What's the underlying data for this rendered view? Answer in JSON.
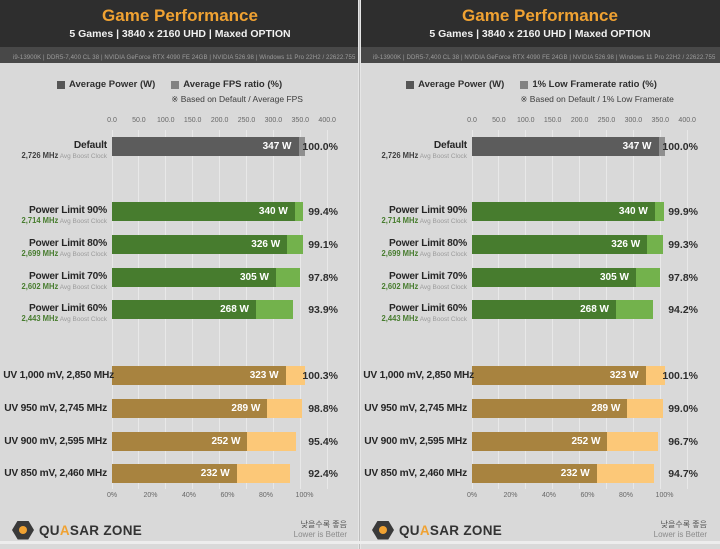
{
  "colors": {
    "header_bg": "#2e2e2e",
    "title_orange": "#f0a232",
    "subtitle": "#f2f2f2",
    "spec_bg": "#484848",
    "spec_text": "#9d9d9d",
    "chart_bg": "#d9d9d9",
    "gridline": "#e8e8e8",
    "legend_power_swatch": "#565656",
    "legend_ratio_swatch": "#828282",
    "groups": {
      "default": {
        "dark": "#5c5c5c",
        "light": "#8f8f8f",
        "clock": "#3f3f3f"
      },
      "pl": {
        "dark": "#477c2e",
        "light": "#73b24c",
        "clock": "#477c2e"
      },
      "uv": {
        "dark": "#a8833f",
        "light": "#fcc878",
        "clock": "#a8833f"
      }
    }
  },
  "panels": [
    {
      "header": {
        "title": "Game Performance",
        "subtitle": "5 Games  |  3840 x 2160 UHD  |  Maxed OPTION",
        "specs": "i9-13900K  |  DDR5-7,400 CL 38  |  NVIDIA GeForce RTX 4090 FE 24GB  |  NVIDIA 526.98  |  Windows 11 Pro 22H2 / 22622.755"
      },
      "legend": {
        "power_label": "Average Power (W)",
        "ratio_label": "Average FPS ratio (%)",
        "note": "※ Based on Default / Average FPS"
      },
      "chart_data": {
        "type": "bar",
        "orientation": "horizontal",
        "title": "Game Performance — Average Power (W) vs Average FPS ratio (%)",
        "top_axis": {
          "label": "Average Power (W)",
          "ticks": [
            "0.0",
            "50.0",
            "100.0",
            "150.0",
            "200.0",
            "250.0",
            "300.0",
            "350.0",
            "400.0"
          ],
          "min": 0,
          "max": 400
        },
        "bottom_axis": {
          "label": "Ratio (%)",
          "labels": [
            "0%",
            "20%",
            "40%",
            "60%",
            "80%",
            "100%"
          ],
          "values": [
            0,
            20,
            40,
            60,
            80,
            100
          ],
          "min": 0,
          "max": 100
        },
        "rows": [
          {
            "label": "Default",
            "clock": "2,726 MHz",
            "clock_note": "Avg Boost Clock",
            "watts": 347,
            "watts_label": "347 W",
            "ratio": 100.0,
            "ratio_label": "100.0%",
            "group": "default"
          },
          {
            "label": "Power Limit 90%",
            "clock": "2,714 MHz",
            "clock_note": "Avg Boost Clock",
            "watts": 340,
            "watts_label": "340 W",
            "ratio": 99.4,
            "ratio_label": "99.4%",
            "group": "pl"
          },
          {
            "label": "Power Limit 80%",
            "clock": "2,699 MHz",
            "clock_note": "Avg Boost Clock",
            "watts": 326,
            "watts_label": "326 W",
            "ratio": 99.1,
            "ratio_label": "99.1%",
            "group": "pl"
          },
          {
            "label": "Power Limit 70%",
            "clock": "2,602 MHz",
            "clock_note": "Avg Boost Clock",
            "watts": 305,
            "watts_label": "305 W",
            "ratio": 97.8,
            "ratio_label": "97.8%",
            "group": "pl"
          },
          {
            "label": "Power Limit 60%",
            "clock": "2,443 MHz",
            "clock_note": "Avg Boost Clock",
            "watts": 268,
            "watts_label": "268 W",
            "ratio": 93.9,
            "ratio_label": "93.9%",
            "group": "pl"
          },
          {
            "label": "UV 1,000 mV, 2,850 MHz",
            "clock": null,
            "clock_note": null,
            "watts": 323,
            "watts_label": "323 W",
            "ratio": 100.3,
            "ratio_label": "100.3%",
            "group": "uv"
          },
          {
            "label": "UV 950 mV, 2,745 MHz",
            "clock": null,
            "clock_note": null,
            "watts": 289,
            "watts_label": "289 W",
            "ratio": 98.8,
            "ratio_label": "98.8%",
            "group": "uv"
          },
          {
            "label": "UV 900 mV, 2,595 MHz",
            "clock": null,
            "clock_note": null,
            "watts": 252,
            "watts_label": "252 W",
            "ratio": 95.4,
            "ratio_label": "95.4%",
            "group": "uv"
          },
          {
            "label": "UV 850 mV, 2,460 MHz",
            "clock": null,
            "clock_note": null,
            "watts": 232,
            "watts_label": "232 W",
            "ratio": 92.4,
            "ratio_label": "92.4%",
            "group": "uv"
          }
        ]
      },
      "footer": {
        "brand_prefix": "QU",
        "brand_accent": "A",
        "brand_suffix": "SAR ZONE",
        "note_kr": "낮을수록 좋음",
        "note_en": "Lower is Better"
      }
    },
    {
      "header": {
        "title": "Game Performance",
        "subtitle": "5 Games  |  3840 x 2160 UHD  |  Maxed OPTION",
        "specs": "i9-13900K  |  DDR5-7,400 CL 38  |  NVIDIA GeForce RTX 4090 FE 24GB  |  NVIDIA 526.98  |  Windows 11 Pro 22H2 / 22622.755"
      },
      "legend": {
        "power_label": "Average Power (W)",
        "ratio_label": "1% Low Framerate ratio (%)",
        "note": "※ Based on Default / 1% Low Framerate"
      },
      "chart_data": {
        "type": "bar",
        "orientation": "horizontal",
        "title": "Game Performance — Average Power (W) vs 1% Low Framerate ratio (%)",
        "top_axis": {
          "label": "Average Power (W)",
          "ticks": [
            "0.0",
            "50.0",
            "100.0",
            "150.0",
            "200.0",
            "250.0",
            "300.0",
            "350.0",
            "400.0"
          ],
          "min": 0,
          "max": 400
        },
        "bottom_axis": {
          "label": "Ratio (%)",
          "labels": [
            "0%",
            "20%",
            "40%",
            "60%",
            "80%",
            "100%"
          ],
          "values": [
            0,
            20,
            40,
            60,
            80,
            100
          ],
          "min": 0,
          "max": 100
        },
        "rows": [
          {
            "label": "Default",
            "clock": "2,726 MHz",
            "clock_note": "Avg Boost Clock",
            "watts": 347,
            "watts_label": "347 W",
            "ratio": 100.0,
            "ratio_label": "100.0%",
            "group": "default"
          },
          {
            "label": "Power Limit 90%",
            "clock": "2,714 MHz",
            "clock_note": "Avg Boost Clock",
            "watts": 340,
            "watts_label": "340 W",
            "ratio": 99.9,
            "ratio_label": "99.9%",
            "group": "pl"
          },
          {
            "label": "Power Limit 80%",
            "clock": "2,699 MHz",
            "clock_note": "Avg Boost Clock",
            "watts": 326,
            "watts_label": "326 W",
            "ratio": 99.3,
            "ratio_label": "99.3%",
            "group": "pl"
          },
          {
            "label": "Power Limit 70%",
            "clock": "2,602 MHz",
            "clock_note": "Avg Boost Clock",
            "watts": 305,
            "watts_label": "305 W",
            "ratio": 97.8,
            "ratio_label": "97.8%",
            "group": "pl"
          },
          {
            "label": "Power Limit 60%",
            "clock": "2,443 MHz",
            "clock_note": "Avg Boost Clock",
            "watts": 268,
            "watts_label": "268 W",
            "ratio": 94.2,
            "ratio_label": "94.2%",
            "group": "pl"
          },
          {
            "label": "UV 1,000 mV, 2,850 MHz",
            "clock": null,
            "clock_note": null,
            "watts": 323,
            "watts_label": "323 W",
            "ratio": 100.1,
            "ratio_label": "100.1%",
            "group": "uv"
          },
          {
            "label": "UV 950 mV, 2,745 MHz",
            "clock": null,
            "clock_note": null,
            "watts": 289,
            "watts_label": "289 W",
            "ratio": 99.0,
            "ratio_label": "99.0%",
            "group": "uv"
          },
          {
            "label": "UV 900 mV, 2,595 MHz",
            "clock": null,
            "clock_note": null,
            "watts": 252,
            "watts_label": "252 W",
            "ratio": 96.7,
            "ratio_label": "96.7%",
            "group": "uv"
          },
          {
            "label": "UV 850 mV, 2,460 MHz",
            "clock": null,
            "clock_note": null,
            "watts": 232,
            "watts_label": "232 W",
            "ratio": 94.7,
            "ratio_label": "94.7%",
            "group": "uv"
          }
        ]
      },
      "footer": {
        "brand_prefix": "QU",
        "brand_accent": "A",
        "brand_suffix": "SAR ZONE",
        "note_kr": "낮을수록 좋음",
        "note_en": "Lower is Better"
      }
    }
  ]
}
